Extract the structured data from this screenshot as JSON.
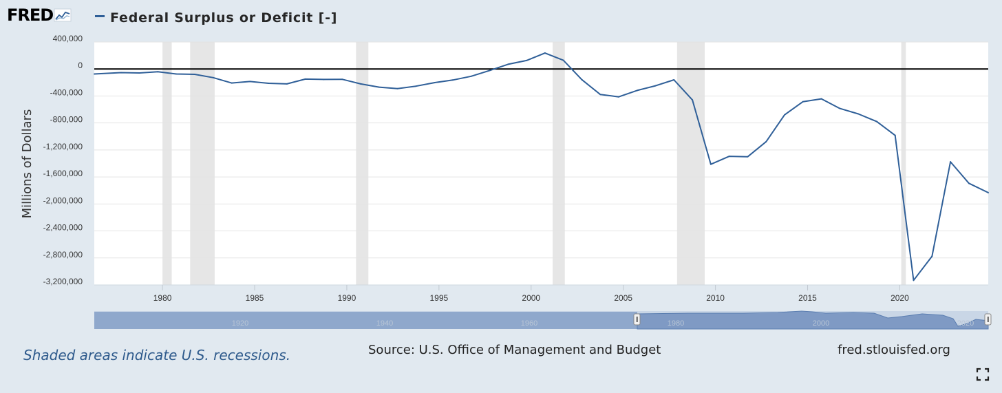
{
  "header": {
    "logo_text": "FRED",
    "title": "Federal Surplus or Deficit [-]"
  },
  "colors": {
    "background": "#e1e9f0",
    "plot_background": "#ffffff",
    "series_line": "#2f5f98",
    "recession_shade": "#e6e6e6",
    "zero_line": "#000000",
    "navigator_fill": "#8fa8cc"
  },
  "chart_data": {
    "type": "line",
    "title": "Federal Surplus or Deficit [-]",
    "xlabel": "",
    "ylabel": "Millions of Dollars",
    "xlim": [
      1976.3,
      2024.8
    ],
    "ylim": [
      -3200000,
      400000
    ],
    "y_ticks": [
      400000,
      0,
      -400000,
      -800000,
      -1200000,
      -1600000,
      -2000000,
      -2400000,
      -2800000,
      -3200000
    ],
    "y_tick_labels": [
      "400,000",
      "0",
      "-400,000",
      "-800,000",
      "-1,200,000",
      "-1,600,000",
      "-2,000,000",
      "-2,400,000",
      "-2,800,000",
      "-3,200,000"
    ],
    "x_ticks": [
      1980,
      1985,
      1990,
      1995,
      2000,
      2005,
      2010,
      2015,
      2020
    ],
    "x_tick_labels": [
      "1980",
      "1985",
      "1990",
      "1995",
      "2000",
      "2005",
      "2010",
      "2015",
      "2020"
    ],
    "grid": true,
    "recessions": [
      [
        1980.0,
        1980.5
      ],
      [
        1981.5,
        1982.83
      ],
      [
        1990.5,
        1991.17
      ],
      [
        2001.17,
        2001.83
      ],
      [
        2007.92,
        2009.42
      ],
      [
        2020.08,
        2020.33
      ]
    ],
    "series": [
      {
        "name": "Federal Surplus or Deficit [-]",
        "x": [
          1976.3,
          1977.75,
          1978.75,
          1979.75,
          1980.75,
          1981.75,
          1982.75,
          1983.75,
          1984.75,
          1985.75,
          1986.75,
          1987.75,
          1988.75,
          1989.75,
          1990.75,
          1991.75,
          1992.75,
          1993.75,
          1994.75,
          1995.75,
          1996.75,
          1997.75,
          1998.75,
          1999.75,
          2000.75,
          2001.75,
          2002.75,
          2003.75,
          2004.75,
          2005.75,
          2006.75,
          2007.75,
          2008.75,
          2009.75,
          2010.75,
          2011.75,
          2012.75,
          2013.75,
          2014.75,
          2015.75,
          2016.75,
          2017.75,
          2018.75,
          2019.75,
          2020.75,
          2021.75,
          2022.75,
          2023.75,
          2024.8
        ],
        "values": [
          -73732,
          -53659,
          -59185,
          -40726,
          -73830,
          -78968,
          -127977,
          -207802,
          -185367,
          -212308,
          -221227,
          -149730,
          -155178,
          -152639,
          -221036,
          -269238,
          -290321,
          -255051,
          -203186,
          -163952,
          -107431,
          -21884,
          69270,
          125610,
          236241,
          128236,
          -157758,
          -377585,
          -412727,
          -318346,
          -248181,
          -160701,
          -458553,
          -1412688,
          -1294373,
          -1299599,
          -1076573,
          -679775,
          -484602,
          -441960,
          -584651,
          -665446,
          -779137,
          -983592,
          -3131917,
          -2775306,
          -1375905,
          -1693868,
          -1832823
        ]
      }
    ],
    "navigator": {
      "tick_labels": [
        "1920",
        "1940",
        "1960",
        "1980",
        "2000",
        "2020"
      ]
    }
  },
  "footer": {
    "recession_note": "Shaded areas indicate U.S. recessions.",
    "source": "Source: U.S. Office of Management and Budget",
    "site": "fred.stlouisfed.org"
  },
  "icons": {
    "logo_graph": "fred-graph-icon",
    "fullscreen": "fullscreen-icon"
  }
}
